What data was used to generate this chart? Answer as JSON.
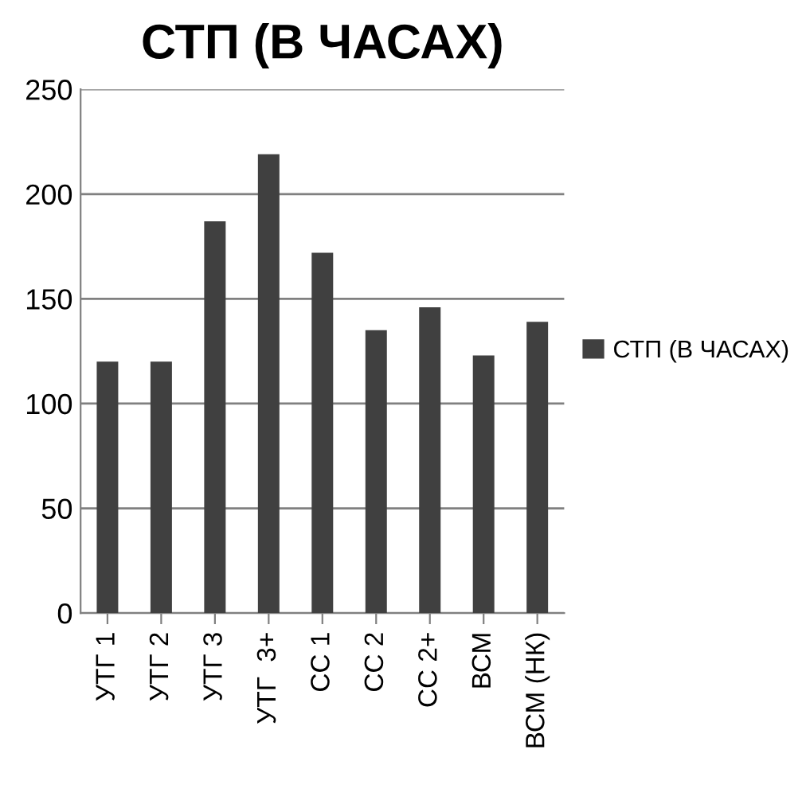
{
  "chart_data": {
    "type": "bar",
    "title": "СТП (В ЧАСАХ)",
    "categories": [
      "УТГ 1",
      "УТГ 2",
      "УТГ 3",
      "УТГ  3+",
      "СС 1",
      "СС 2",
      "СС 2+",
      "ВСМ",
      "ВСМ (НК)"
    ],
    "series": [
      {
        "name": "СТП (В ЧАСАХ)",
        "color": "#404040",
        "values": [
          120,
          120,
          187,
          219,
          172,
          135,
          146,
          123,
          139
        ]
      }
    ],
    "ylim": [
      0,
      250
    ],
    "yticks": [
      0,
      50,
      100,
      150,
      200,
      250
    ],
    "grid": "y",
    "legend": "right"
  }
}
